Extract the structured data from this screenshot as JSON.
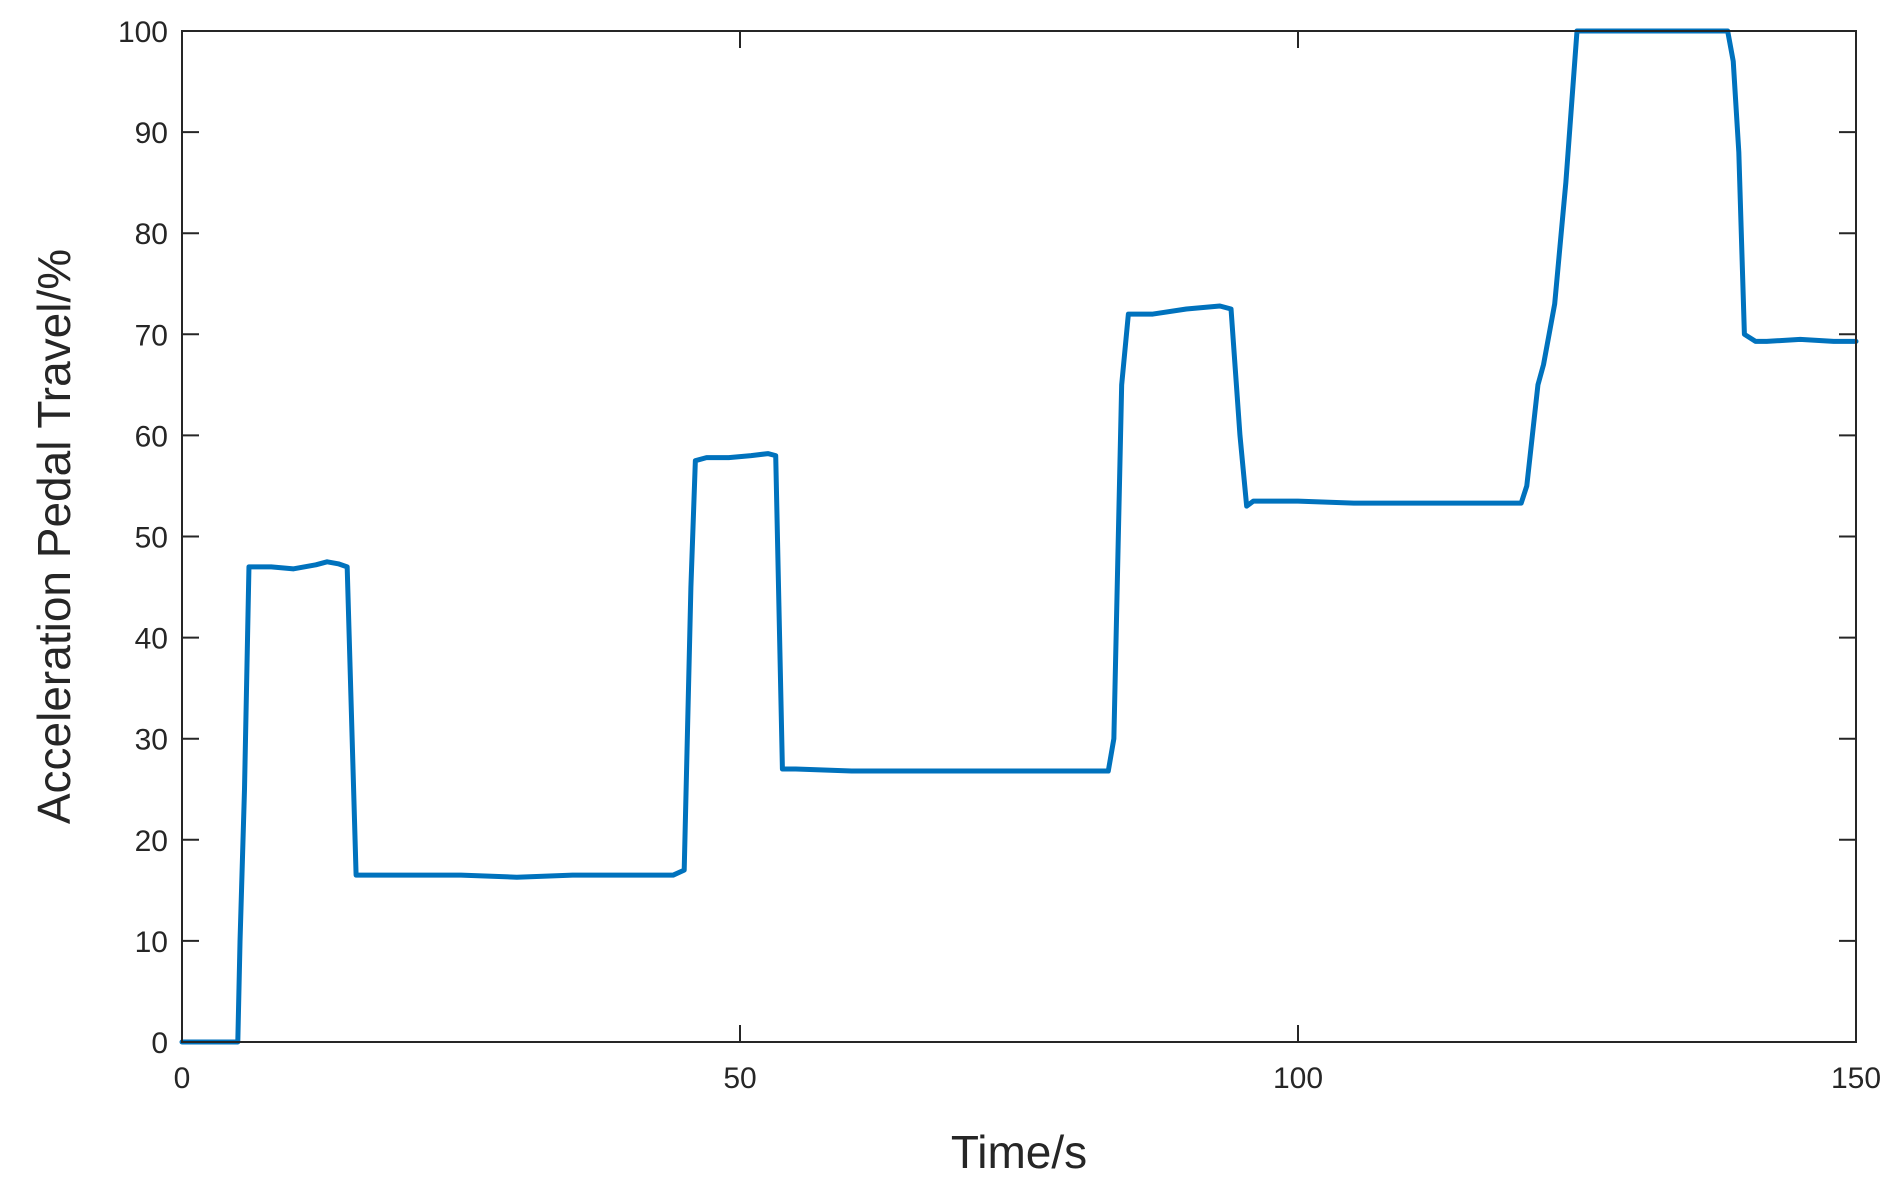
{
  "chart_data": {
    "type": "line",
    "title": "",
    "xlabel": "Time/s",
    "ylabel": "Acceleration Pedal Travel/%",
    "xlim": [
      0,
      150
    ],
    "ylim": [
      0,
      100
    ],
    "xticks": [
      0,
      50,
      100,
      150
    ],
    "yticks": [
      0,
      10,
      20,
      30,
      40,
      50,
      60,
      70,
      80,
      90,
      100
    ],
    "grid": false,
    "legend": "none",
    "line_color": "#0072BD",
    "series": [
      {
        "x": [
          0,
          5,
          5.2,
          5.6,
          6,
          8,
          10,
          12,
          13,
          14,
          14.8,
          15.6,
          16,
          20,
          25,
          30,
          35,
          40,
          44,
          45,
          45.6,
          46,
          47,
          49,
          51,
          52.5,
          53.2,
          53.8,
          55,
          60,
          65,
          70,
          75,
          80,
          83,
          83.5,
          83.8,
          84.2,
          84.8,
          87,
          90,
          93,
          94,
          94.8,
          95.4,
          96,
          100,
          105,
          110,
          115,
          120,
          120.5,
          121,
          121.5,
          122,
          123,
          124,
          124.8,
          125,
          126,
          130,
          135,
          138,
          138.5,
          139,
          139.5,
          140,
          141,
          142,
          145,
          148,
          150
        ],
        "y": [
          0,
          0,
          10,
          25,
          47,
          47,
          46.8,
          47.2,
          47.5,
          47.3,
          47,
          16.5,
          16.5,
          16.5,
          16.5,
          16.3,
          16.5,
          16.5,
          16.5,
          17,
          45,
          57.5,
          57.8,
          57.8,
          58,
          58.2,
          58,
          27,
          27,
          26.8,
          26.8,
          26.8,
          26.8,
          26.8,
          26.8,
          30,
          45,
          65,
          72,
          72,
          72.5,
          72.8,
          72.5,
          60,
          53,
          53.5,
          53.5,
          53.3,
          53.3,
          53.3,
          53.3,
          55,
          60,
          65,
          67,
          73,
          85,
          97,
          100,
          100,
          100,
          100,
          100,
          100,
          97,
          88,
          70,
          69.3,
          69.3,
          69.5,
          69.3,
          69.3
        ]
      }
    ]
  }
}
